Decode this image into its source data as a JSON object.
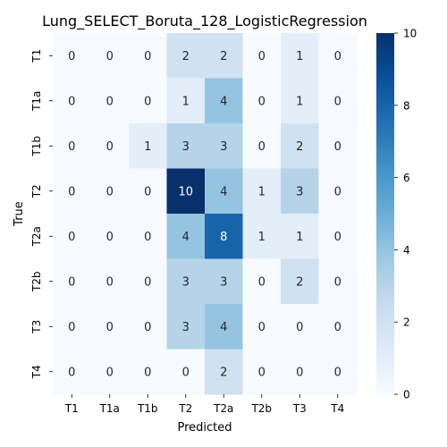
{
  "chart_data": {
    "type": "heatmap",
    "title": "Lung_SELECT_Boruta_128_LogisticRegression",
    "xlabel": "Predicted",
    "ylabel": "True",
    "x_categories": [
      "T1",
      "T1a",
      "T1b",
      "T2",
      "T2a",
      "T2b",
      "T3",
      "T4"
    ],
    "y_categories": [
      "T1",
      "T1a",
      "T1b",
      "T2",
      "T2a",
      "T2b",
      "T3",
      "T4"
    ],
    "values": [
      [
        0,
        0,
        0,
        2,
        2,
        0,
        1,
        0
      ],
      [
        0,
        0,
        0,
        1,
        4,
        0,
        1,
        0
      ],
      [
        0,
        0,
        1,
        3,
        3,
        0,
        2,
        0
      ],
      [
        0,
        0,
        0,
        10,
        4,
        1,
        3,
        0
      ],
      [
        0,
        0,
        0,
        4,
        8,
        1,
        1,
        0
      ],
      [
        0,
        0,
        0,
        3,
        3,
        0,
        2,
        0
      ],
      [
        0,
        0,
        0,
        3,
        4,
        0,
        0,
        0
      ],
      [
        0,
        0,
        0,
        0,
        2,
        0,
        0,
        0
      ]
    ],
    "colorbar": {
      "min": 0,
      "max": 10,
      "ticks": [
        0,
        2,
        4,
        6,
        8,
        10
      ],
      "colormap": "Blues"
    }
  }
}
